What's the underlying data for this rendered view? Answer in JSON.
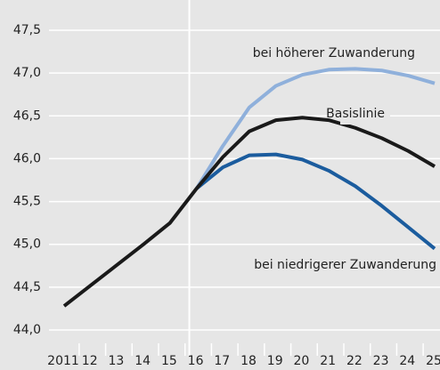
{
  "chart_data": {
    "type": "line",
    "categories": [
      "2011",
      "12",
      "13",
      "14",
      "15",
      "16",
      "17",
      "18",
      "19",
      "20",
      "21",
      "22",
      "23",
      "24",
      "25"
    ],
    "series": [
      {
        "name": "bei höherer Zuwanderung",
        "color": "#8fb0db",
        "values": [
          null,
          null,
          null,
          null,
          null,
          45.65,
          46.15,
          46.6,
          46.85,
          46.98,
          47.04,
          47.05,
          47.03,
          46.97,
          46.88
        ]
      },
      {
        "name": "bei niedrigerer Zuwanderung",
        "color": "#1b5c9e",
        "values": [
          null,
          null,
          null,
          null,
          null,
          45.65,
          45.9,
          46.04,
          46.05,
          45.99,
          45.86,
          45.68,
          45.45,
          45.2,
          44.95
        ]
      },
      {
        "name": "Basislinie",
        "color": "#1a1a1a",
        "values": [
          44.28,
          44.52,
          44.76,
          45.0,
          45.25,
          45.65,
          46.02,
          46.32,
          46.45,
          46.48,
          46.45,
          46.36,
          46.24,
          46.09,
          45.91
        ]
      }
    ],
    "ylim": [
      44.0,
      47.5
    ],
    "yticks": [
      {
        "value": 44.0,
        "label": "44,0"
      },
      {
        "value": 44.5,
        "label": "44,5"
      },
      {
        "value": 45.0,
        "label": "45,0"
      },
      {
        "value": 45.5,
        "label": "45,5"
      },
      {
        "value": 46.0,
        "label": "46,0"
      },
      {
        "value": 46.5,
        "label": "46,5"
      },
      {
        "value": 47.0,
        "label": "47,0"
      },
      {
        "value": 47.5,
        "label": "47,5"
      }
    ],
    "grid": true
  }
}
